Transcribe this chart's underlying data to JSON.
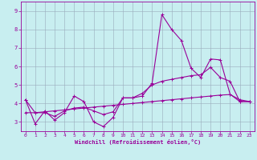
{
  "xlabel": "Windchill (Refroidissement éolien,°C)",
  "xlim": [
    -0.5,
    23.5
  ],
  "ylim": [
    2.5,
    9.5
  ],
  "yticks": [
    3,
    4,
    5,
    6,
    7,
    8,
    9
  ],
  "xticks": [
    0,
    1,
    2,
    3,
    4,
    5,
    6,
    7,
    8,
    9,
    10,
    11,
    12,
    13,
    14,
    15,
    16,
    17,
    18,
    19,
    20,
    21,
    22,
    23
  ],
  "bg_color": "#c8eef0",
  "line_color": "#990099",
  "grid_color": "#99aabb",
  "series1": [
    4.2,
    2.9,
    3.6,
    3.1,
    3.5,
    4.4,
    4.1,
    3.0,
    2.75,
    3.25,
    4.3,
    4.3,
    4.4,
    5.1,
    8.8,
    8.0,
    7.4,
    5.9,
    5.4,
    6.4,
    6.35,
    4.5,
    4.1,
    4.1
  ],
  "series2": [
    4.2,
    3.5,
    3.5,
    3.3,
    3.6,
    3.75,
    3.8,
    3.6,
    3.4,
    3.55,
    4.3,
    4.3,
    4.55,
    5.0,
    5.2,
    5.3,
    5.4,
    5.5,
    5.55,
    5.95,
    5.4,
    5.2,
    4.1,
    4.1
  ],
  "series3": [
    3.5,
    3.5,
    3.55,
    3.6,
    3.65,
    3.7,
    3.75,
    3.8,
    3.85,
    3.9,
    3.95,
    4.0,
    4.05,
    4.1,
    4.15,
    4.2,
    4.25,
    4.3,
    4.35,
    4.4,
    4.45,
    4.48,
    4.2,
    4.1
  ]
}
